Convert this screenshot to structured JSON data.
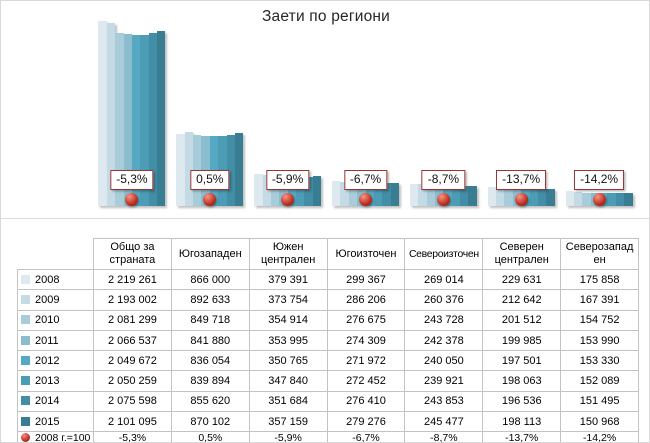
{
  "chart_data": {
    "type": "bar",
    "title": "Заети по региони",
    "categories": [
      "Общо за страната",
      "Югозападен",
      "Южен централен",
      "Югоизточен",
      "Североизточен",
      "Северен централен",
      "Северозападен"
    ],
    "series": [
      {
        "name": "2008",
        "color": "#dde9ef",
        "values": [
          2219261,
          866000,
          379391,
          299367,
          269014,
          229631,
          175858
        ]
      },
      {
        "name": "2009",
        "color": "#c4dae4",
        "values": [
          2193002,
          892633,
          373754,
          286206,
          260376,
          212642,
          167391
        ]
      },
      {
        "name": "2010",
        "color": "#a8ccda",
        "values": [
          2081299,
          849718,
          354914,
          276675,
          243728,
          201512,
          154752
        ]
      },
      {
        "name": "2011",
        "color": "#8bbdce",
        "values": [
          2066537,
          841880,
          353995,
          274309,
          242378,
          199985,
          153990
        ]
      },
      {
        "name": "2012",
        "color": "#55a9c2",
        "values": [
          2049672,
          836054,
          350765,
          271972,
          240050,
          197501,
          153330
        ]
      },
      {
        "name": "2013",
        "color": "#4c9cb5",
        "values": [
          2050259,
          839894,
          347840,
          272452,
          239921,
          198063,
          152089
        ]
      },
      {
        "name": "2014",
        "color": "#428ea6",
        "values": [
          2075598,
          855620,
          351684,
          276410,
          243853,
          196536,
          151495
        ]
      },
      {
        "name": "2015",
        "color": "#397d92",
        "values": [
          2101095,
          870102,
          357159,
          279276,
          245477,
          198113,
          150968
        ]
      }
    ],
    "marker_series": {
      "name": "2008 г.=100",
      "labels": [
        "-5,3%",
        "0,5%",
        "-5,9%",
        "-6,7%",
        "-8,7%",
        "-13,7%",
        "-14,2%"
      ],
      "marker_color": "#bb2e1f",
      "callout_border": "#963634"
    },
    "ylim": [
      0,
      2300000
    ],
    "grid": false,
    "legend_position": "data-table-keys"
  },
  "table": {
    "value_rows": [
      [
        "2 219 261",
        "866 000",
        "379 391",
        "299 367",
        "269 014",
        "229 631",
        "175 858"
      ],
      [
        "2 193 002",
        "892 633",
        "373 754",
        "286 206",
        "260 376",
        "212 642",
        "167 391"
      ],
      [
        "2 081 299",
        "849 718",
        "354 914",
        "276 675",
        "243 728",
        "201 512",
        "154 752"
      ],
      [
        "2 066 537",
        "841 880",
        "353 995",
        "274 309",
        "242 378",
        "199 985",
        "153 990"
      ],
      [
        "2 049 672",
        "836 054",
        "350 765",
        "271 972",
        "240 050",
        "197 501",
        "153 330"
      ],
      [
        "2 050 259",
        "839 894",
        "347 840",
        "272 452",
        "239 921",
        "198 063",
        "152 089"
      ],
      [
        "2 075 598",
        "855 620",
        "351 684",
        "276 410",
        "243 853",
        "196 536",
        "151 495"
      ],
      [
        "2 101 095",
        "870 102",
        "357 159",
        "279 276",
        "245 477",
        "198 113",
        "150 968"
      ]
    ]
  }
}
